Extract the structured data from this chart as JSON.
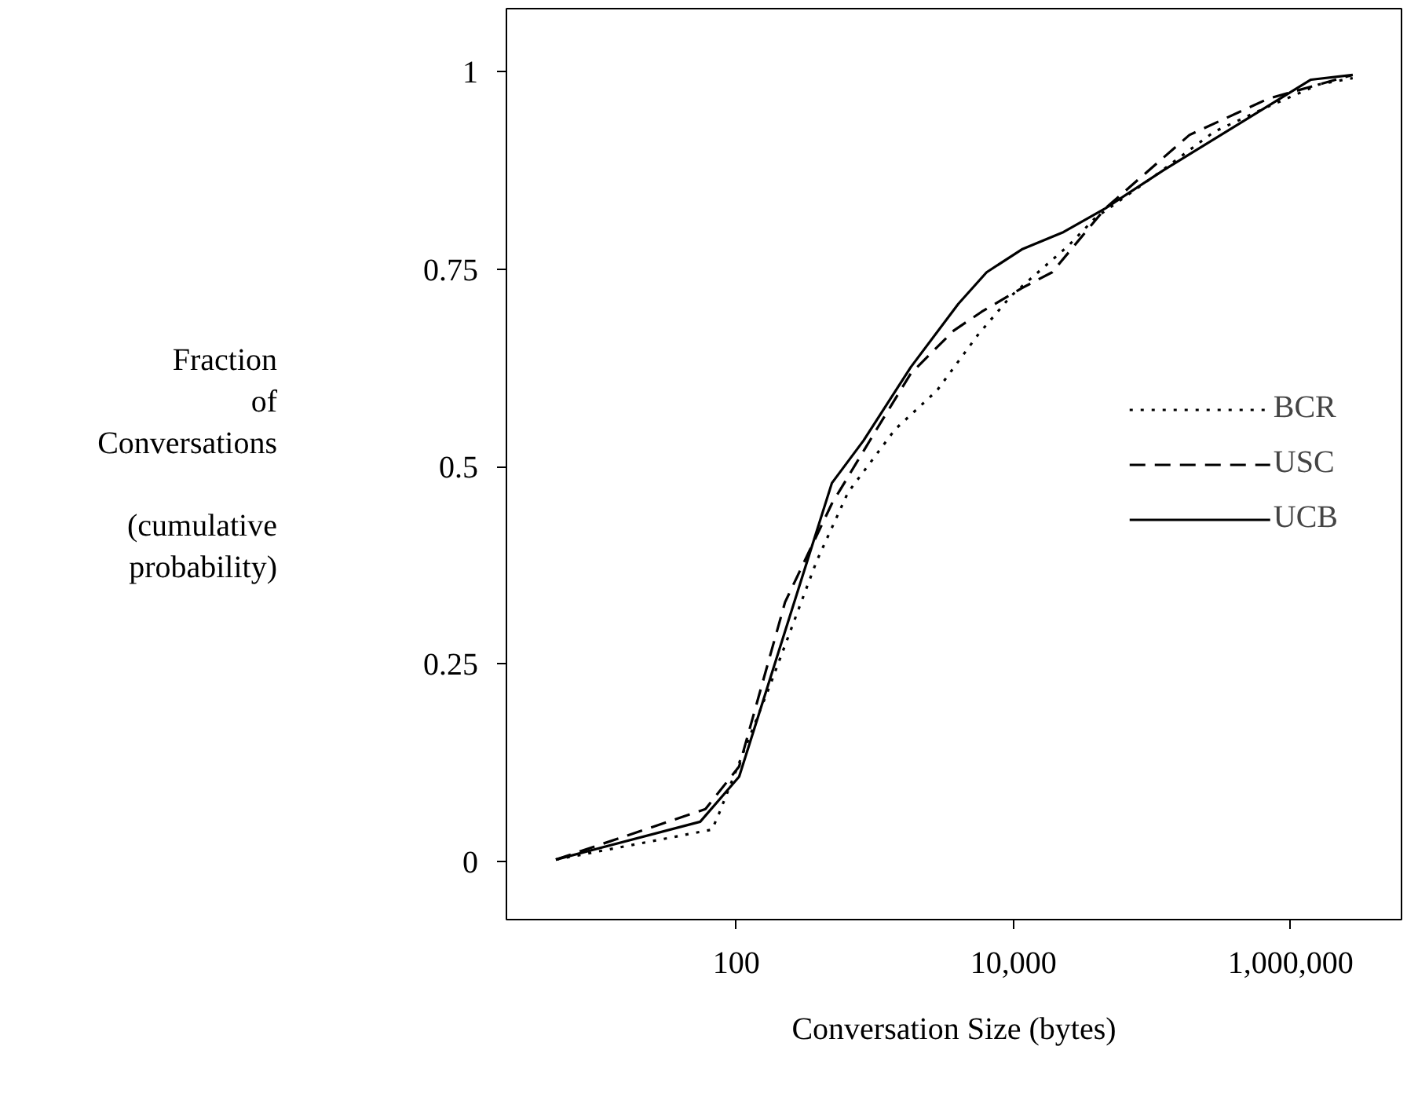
{
  "chart_data": {
    "type": "line",
    "xlabel": "Conversation Size (bytes)",
    "ylabel": "Fraction\nof\nConversations\n\n(cumulative\nprobability)",
    "log": "x",
    "xlim": [
      2.2,
      6300000
    ],
    "ylim": [
      -0.074,
      1.08
    ],
    "xticks": [
      {
        "value": 100,
        "label": "100"
      },
      {
        "value": 10000,
        "label": "10,000"
      },
      {
        "value": 1000000,
        "label": "1,000,000"
      }
    ],
    "yticks": [
      0,
      0.25,
      0.5,
      0.75,
      1
    ],
    "grid": false,
    "legend": "right",
    "series": [
      {
        "name": "BCR",
        "color": "#000000",
        "line_style": "dotted",
        "x": [
          5,
          67,
          75,
          90,
          173,
          380,
          640,
          1400,
          2800,
          5500,
          9600,
          25000,
          39000,
          110000,
          280000,
          690000,
          1600000,
          2800000
        ],
        "values": [
          0.002,
          0.04,
          0.06,
          0.095,
          0.22,
          0.38,
          0.467,
          0.547,
          0.596,
          0.666,
          0.716,
          0.78,
          0.815,
          0.871,
          0.924,
          0.956,
          0.984,
          0.992
        ]
      },
      {
        "name": "USC",
        "color": "#000000",
        "line_style": "dashed",
        "x": [
          5,
          60,
          105,
          225,
          490,
          1030,
          1820,
          3700,
          5900,
          11500,
          19000,
          46000,
          186000,
          690000,
          2800000
        ],
        "values": [
          0.002,
          0.066,
          0.12,
          0.328,
          0.453,
          0.547,
          0.618,
          0.672,
          0.696,
          0.726,
          0.746,
          0.827,
          0.92,
          0.966,
          0.996
        ]
      },
      {
        "name": "UCB",
        "color": "#000000",
        "line_style": "solid",
        "x": [
          5,
          55,
          105,
          490,
          830,
          1820,
          4000,
          6400,
          11500,
          23000,
          46000,
          120000,
          1400000,
          2800000
        ],
        "values": [
          0.002,
          0.05,
          0.107,
          0.479,
          0.533,
          0.626,
          0.706,
          0.746,
          0.775,
          0.797,
          0.827,
          0.875,
          0.99,
          0.996
        ]
      }
    ]
  }
}
